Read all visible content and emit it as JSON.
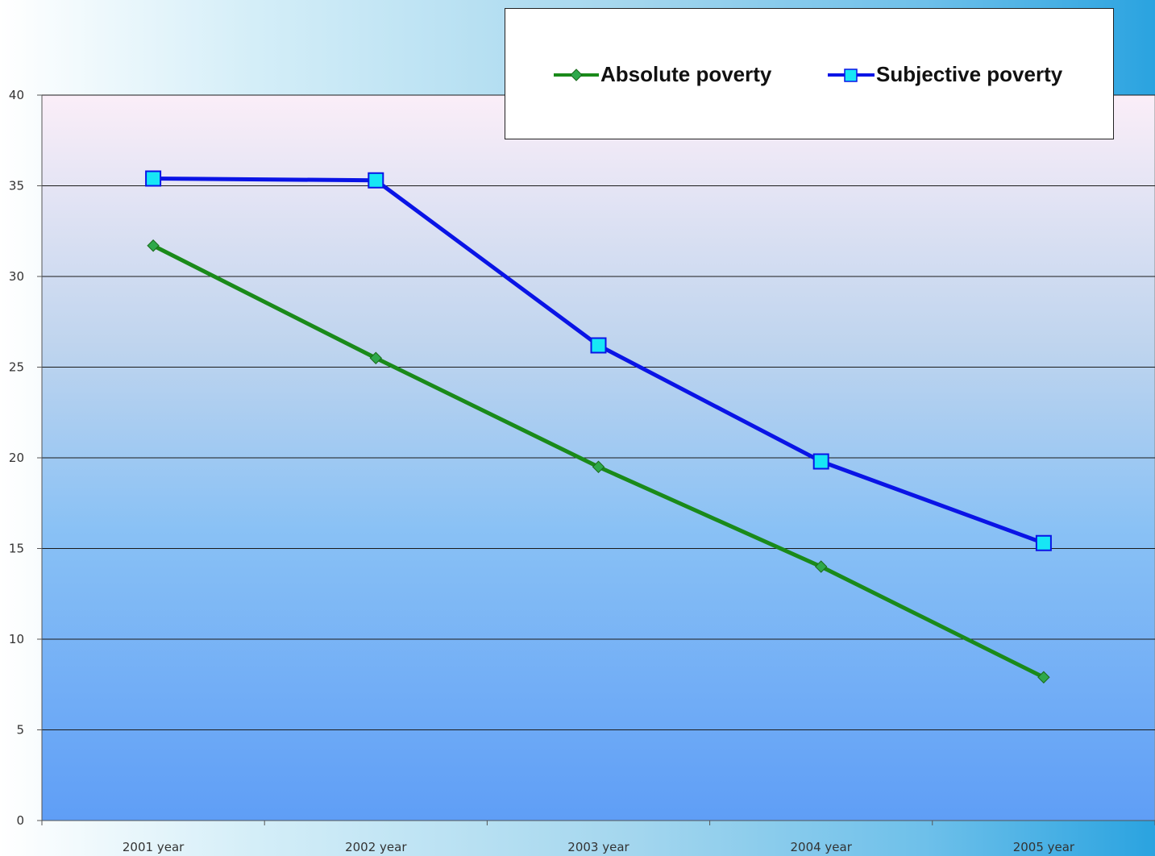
{
  "chart_data": {
    "type": "line",
    "title": "",
    "xlabel": "",
    "ylabel": "",
    "categories": [
      "2001 year",
      "2002 year",
      "2003 year",
      "2004 year",
      "2005 year"
    ],
    "ylim": [
      0,
      40
    ],
    "yticks": [
      0,
      5,
      10,
      15,
      20,
      25,
      30,
      35,
      40
    ],
    "grid": true,
    "legend_position": "top-right",
    "series": [
      {
        "name": "Absolute poverty",
        "values": [
          31.7,
          25.5,
          19.5,
          14.0,
          7.9
        ],
        "color": "#1a8a1a",
        "marker": "diamond",
        "marker_color": "#2ea84a"
      },
      {
        "name": "Subjective poverty",
        "values": [
          35.4,
          35.3,
          26.2,
          19.8,
          15.3
        ],
        "color": "#0a14e6",
        "marker": "square",
        "marker_color": "#17e6f5"
      }
    ]
  }
}
